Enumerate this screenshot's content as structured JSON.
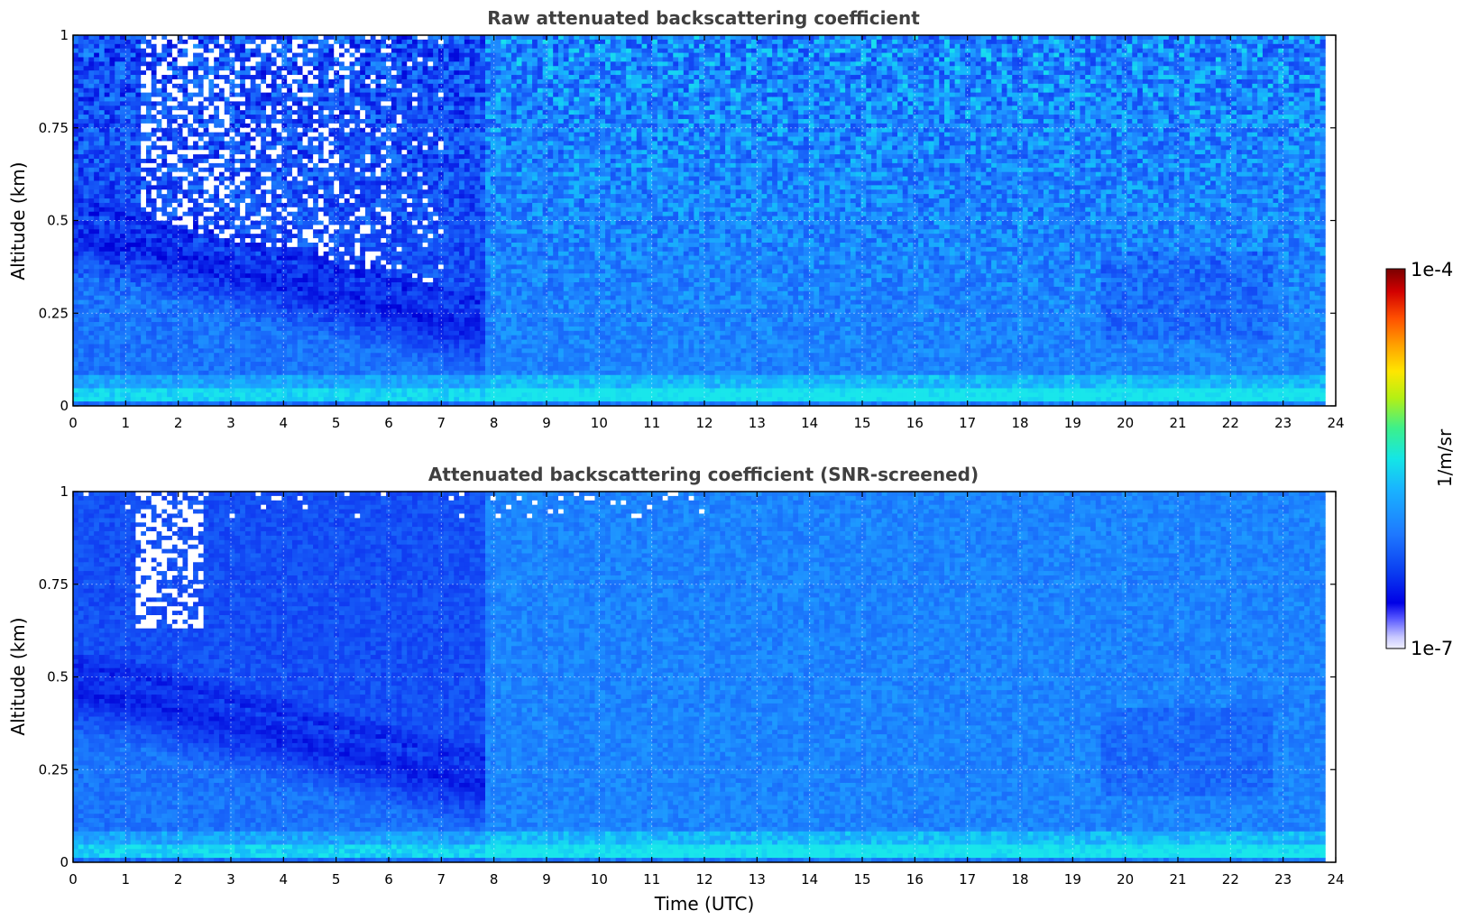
{
  "chart_data": [
    {
      "type": "heatmap",
      "title": "Raw attenuated backscattering coefficient",
      "xlabel": "",
      "ylabel": "Altitude (km)",
      "xlim": [
        0,
        24
      ],
      "ylim": [
        0,
        1
      ],
      "x_ticks": [
        "0",
        "1",
        "2",
        "3",
        "4",
        "5",
        "6",
        "7",
        "8",
        "9",
        "10",
        "11",
        "12",
        "13",
        "14",
        "15",
        "16",
        "17",
        "18",
        "19",
        "20",
        "21",
        "22",
        "23",
        "24"
      ],
      "y_ticks": [
        "0",
        "0.25",
        "0.5",
        "0.75",
        "1"
      ],
      "y_tick_values": [
        0,
        0.25,
        0.5,
        0.75,
        1
      ],
      "data_x_end": 23.8,
      "grid": true,
      "screened": false
    },
    {
      "type": "heatmap",
      "title": "Attenuated backscattering coefficient (SNR-screened)",
      "xlabel": "Time (UTC)",
      "ylabel": "Altitude (km)",
      "xlim": [
        0,
        24
      ],
      "ylim": [
        0,
        1
      ],
      "x_ticks": [
        "0",
        "1",
        "2",
        "3",
        "4",
        "5",
        "6",
        "7",
        "8",
        "9",
        "10",
        "11",
        "12",
        "13",
        "14",
        "15",
        "16",
        "17",
        "18",
        "19",
        "20",
        "21",
        "22",
        "23",
        "24"
      ],
      "y_ticks": [
        "0",
        "0.25",
        "0.5",
        "0.75",
        "1"
      ],
      "y_tick_values": [
        0,
        0.25,
        0.5,
        0.75,
        1
      ],
      "data_x_end": 23.8,
      "grid": true,
      "screened": true
    }
  ],
  "colorbar": {
    "label": "1/m/sr",
    "min_label": "1e-7",
    "max_label": "1e-4",
    "scale": "log",
    "placement": "right"
  }
}
